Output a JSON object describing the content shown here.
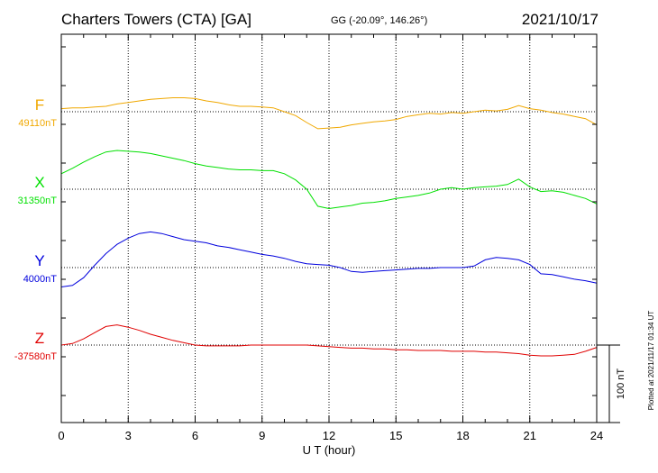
{
  "header": {
    "station": "Charters Towers (CTA)  [GA]",
    "coordinates": "GG (-20.09°, 146.26°)",
    "date": "2021/10/17",
    "plotted_note": "Plotted at 2021/11/17 01:34 UT"
  },
  "colors": {
    "F": "#f0a800",
    "X": "#00e000",
    "Y": "#0000dd",
    "Z": "#e00000",
    "grid": "#000000"
  },
  "chart_data": {
    "type": "line",
    "title": "Charters Towers (CTA)  [GA]",
    "xlabel": "U T (hour)",
    "ylabel": "",
    "xlim": [
      0,
      24
    ],
    "x_ticks": [
      0,
      3,
      6,
      9,
      12,
      15,
      18,
      21,
      24
    ],
    "x_tick_labels": [
      "0",
      "3",
      "6",
      "9",
      "12",
      "15",
      "18",
      "21",
      "24"
    ],
    "scale_bar_label": "100 nT",
    "scale_bar_nT": 100,
    "grid": true,
    "series": [
      {
        "name": "F",
        "baseline_label": "49110nT",
        "baseline_nT": 49110,
        "x": [
          0,
          0.5,
          1,
          1.5,
          2,
          2.5,
          3,
          3.5,
          4,
          4.5,
          5,
          5.5,
          6,
          6.5,
          7,
          7.5,
          8,
          8.5,
          9,
          9.5,
          10,
          10.5,
          11,
          11.5,
          12,
          12.5,
          13,
          13.5,
          14,
          14.5,
          15,
          15.5,
          16,
          16.5,
          17,
          17.5,
          18,
          18.5,
          19,
          19.5,
          20,
          20.5,
          21,
          21.5,
          22,
          22.5,
          23,
          23.5,
          24
        ],
        "values": [
          4,
          5,
          5,
          6,
          7,
          10,
          12,
          14,
          16,
          17,
          18,
          18,
          17,
          14,
          12,
          9,
          7,
          7,
          6,
          5,
          0,
          -5,
          -14,
          -22,
          -21,
          -20,
          -17,
          -15,
          -13,
          -12,
          -10,
          -6,
          -4,
          -2,
          -3,
          -1,
          -2,
          0,
          2,
          1,
          3,
          8,
          4,
          2,
          -1,
          -3,
          -6,
          -9,
          -17
        ]
      },
      {
        "name": "X",
        "baseline_label": "31350nT",
        "baseline_nT": 31350,
        "x": [
          0,
          0.5,
          1,
          1.5,
          2,
          2.5,
          3,
          3.5,
          4,
          4.5,
          5,
          5.5,
          6,
          6.5,
          7,
          7.5,
          8,
          8.5,
          9,
          9.5,
          10,
          10.5,
          11,
          11.5,
          12,
          12.5,
          13,
          13.5,
          14,
          14.5,
          15,
          15.5,
          16,
          16.5,
          17,
          17.5,
          18,
          18.5,
          19,
          19.5,
          20,
          20.5,
          21,
          21.5,
          22,
          22.5,
          23,
          23.5,
          24
        ],
        "values": [
          20,
          27,
          35,
          42,
          48,
          50,
          49,
          48,
          46,
          43,
          40,
          37,
          33,
          30,
          28,
          26,
          25,
          25,
          24,
          24,
          20,
          12,
          0,
          -22,
          -25,
          -23,
          -21,
          -18,
          -17,
          -15,
          -12,
          -10,
          -8,
          -5,
          0,
          2,
          0,
          2,
          3,
          4,
          6,
          13,
          3,
          -3,
          -2,
          -4,
          -8,
          -12,
          -19
        ]
      },
      {
        "name": "Y",
        "baseline_label": "4000nT",
        "baseline_nT": 4000,
        "x": [
          0,
          0.5,
          1,
          1.5,
          2,
          2.5,
          3,
          3.5,
          4,
          4.5,
          5,
          5.5,
          6,
          6.5,
          7,
          7.5,
          8,
          8.5,
          9,
          9.5,
          10,
          10.5,
          11,
          11.5,
          12,
          12.5,
          13,
          13.5,
          14,
          14.5,
          15,
          15.5,
          16,
          16.5,
          17,
          17.5,
          18,
          18.5,
          19,
          19.5,
          20,
          20.5,
          21,
          21.5,
          22,
          22.5,
          23,
          23.5,
          24
        ],
        "values": [
          -25,
          -23,
          -13,
          3,
          18,
          30,
          38,
          44,
          46,
          44,
          40,
          36,
          34,
          32,
          28,
          26,
          23,
          20,
          17,
          15,
          12,
          8,
          5,
          4,
          3,
          0,
          -5,
          -6,
          -5,
          -4,
          -3,
          -2,
          -1,
          -1,
          0,
          0,
          0,
          2,
          10,
          13,
          12,
          10,
          4,
          -8,
          -9,
          -12,
          -15,
          -17,
          -20
        ]
      },
      {
        "name": "Z",
        "baseline_label": "-37580nT",
        "baseline_nT": -37580,
        "x": [
          0,
          0.5,
          1,
          1.5,
          2,
          2.5,
          3,
          3.5,
          4,
          4.5,
          5,
          5.5,
          6,
          6.5,
          7,
          7.5,
          8,
          8.5,
          9,
          9.5,
          10,
          10.5,
          11,
          11.5,
          12,
          12.5,
          13,
          13.5,
          14,
          14.5,
          15,
          15.5,
          16,
          16.5,
          17,
          17.5,
          18,
          18.5,
          19,
          19.5,
          20,
          20.5,
          21,
          21.5,
          22,
          22.5,
          23,
          23.5,
          24
        ],
        "values": [
          0,
          2,
          8,
          16,
          24,
          26,
          23,
          19,
          14,
          10,
          6,
          3,
          0,
          -1,
          -1,
          -1,
          -1,
          0,
          0,
          0,
          0,
          0,
          0,
          -1,
          -2,
          -3,
          -4,
          -4,
          -5,
          -5,
          -6,
          -6,
          -7,
          -7,
          -7,
          -8,
          -8,
          -8,
          -9,
          -9,
          -10,
          -11,
          -13,
          -14,
          -14,
          -13,
          -12,
          -8,
          -3
        ]
      }
    ]
  }
}
